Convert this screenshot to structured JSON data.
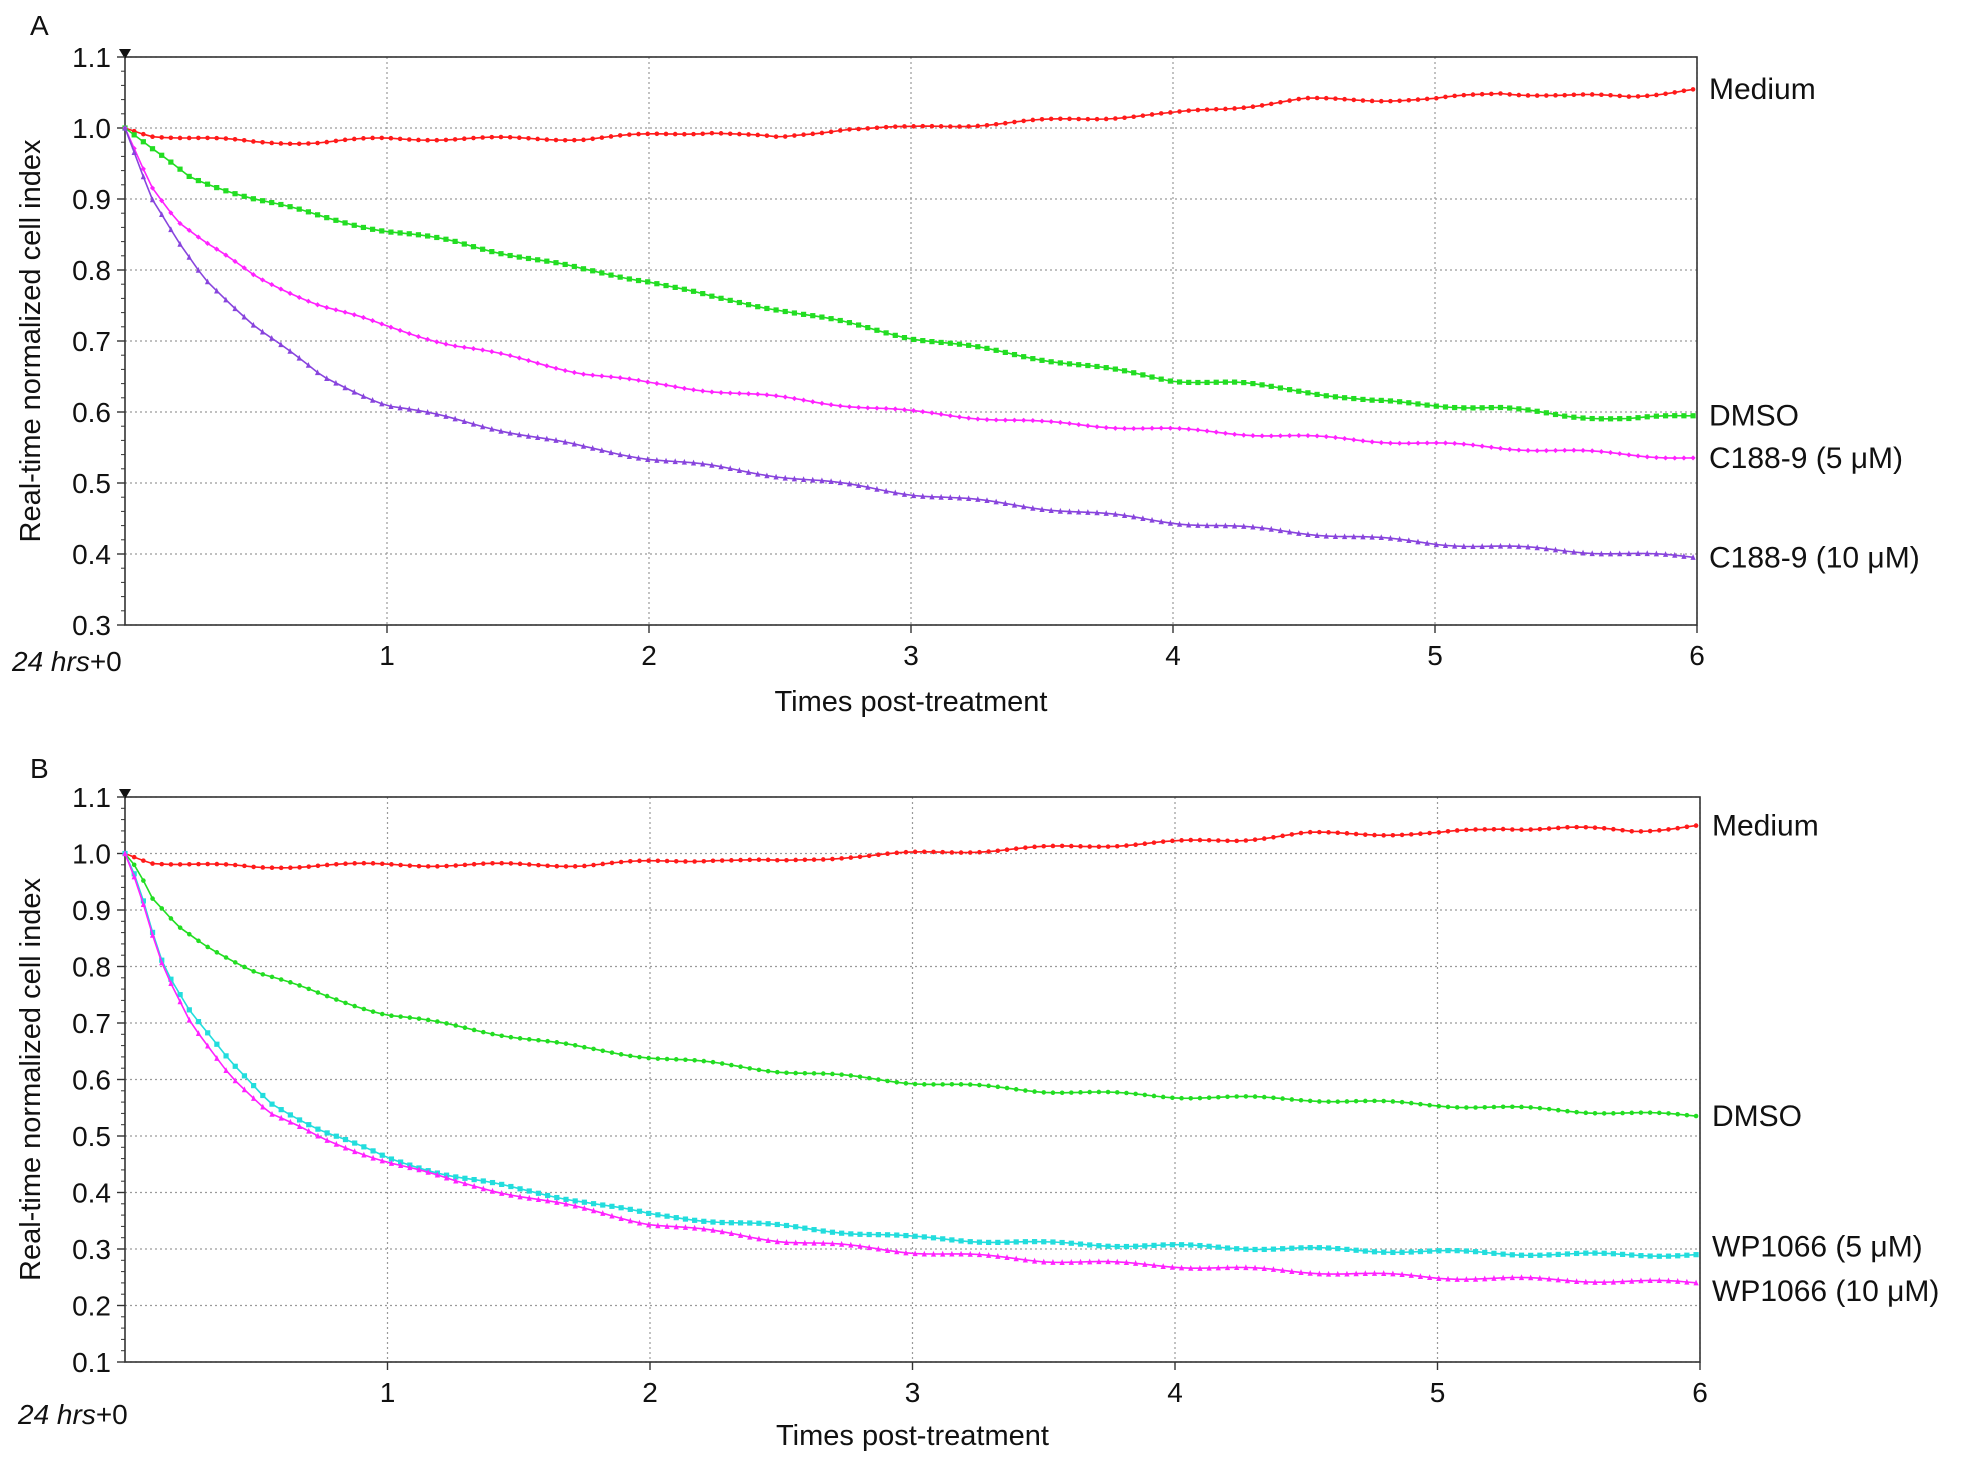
{
  "chart_data": [
    {
      "panel": "A",
      "type": "line",
      "xlabel": "Times post-treatment",
      "ylabel": "Real-time normalized cell index",
      "xlim": [
        0,
        6
      ],
      "ylim": [
        0.3,
        1.1
      ],
      "x_origin_label": {
        "italic": "24 hrs",
        "plain": "+0"
      },
      "xticks": [
        1,
        2,
        3,
        4,
        5,
        6
      ],
      "yticks": [
        0.3,
        0.4,
        0.5,
        0.6,
        0.7,
        0.8,
        0.9,
        1.0,
        1.1
      ],
      "ytick_labels": [
        "0.3",
        "0.4",
        "0.5",
        "0.6",
        "0.7",
        "0.8",
        "0.9",
        "1.0",
        "1.1"
      ],
      "xtick_labels": [
        "1",
        "2",
        "3",
        "4",
        "5",
        "6"
      ],
      "grid": true,
      "legend": "right, labels at line ends",
      "series": [
        {
          "name": "Medium",
          "color": "#ff1a1a",
          "marker": "circle",
          "x": [
            0,
            0.1,
            0.3,
            0.5,
            0.75,
            1.0,
            1.25,
            1.5,
            1.75,
            2.0,
            2.25,
            2.5,
            2.75,
            3.0,
            3.25,
            3.5,
            3.75,
            4.0,
            4.25,
            4.5,
            4.75,
            5.0,
            5.25,
            5.5,
            5.75,
            6.0
          ],
          "y": [
            1.0,
            0.99,
            0.985,
            0.98,
            0.98,
            0.985,
            0.985,
            0.985,
            0.985,
            0.99,
            0.995,
            0.985,
            1.0,
            1.0,
            1.005,
            1.01,
            1.015,
            1.02,
            1.03,
            1.04,
            1.04,
            1.04,
            1.05,
            1.045,
            1.045,
            1.055
          ]
        },
        {
          "name": "DMSO",
          "color": "#22dd22",
          "marker": "square",
          "x": [
            0,
            0.1,
            0.25,
            0.5,
            0.75,
            1.0,
            1.25,
            1.5,
            1.75,
            2.0,
            2.25,
            2.5,
            2.75,
            3.0,
            3.25,
            3.5,
            3.75,
            4.0,
            4.25,
            4.5,
            4.75,
            5.0,
            5.25,
            5.5,
            5.75,
            6.0
          ],
          "y": [
            1.0,
            0.97,
            0.93,
            0.9,
            0.875,
            0.855,
            0.84,
            0.82,
            0.8,
            0.785,
            0.76,
            0.745,
            0.725,
            0.705,
            0.69,
            0.675,
            0.66,
            0.645,
            0.64,
            0.63,
            0.615,
            0.61,
            0.605,
            0.595,
            0.59,
            0.595
          ]
        },
        {
          "name": "C188-9 (5 μM)",
          "color": "#ff22ff",
          "marker": "diamond",
          "x": [
            0,
            0.05,
            0.1,
            0.2,
            0.3,
            0.5,
            0.75,
            1.0,
            1.25,
            1.5,
            1.75,
            2.0,
            2.5,
            3.0,
            3.5,
            4.0,
            4.5,
            5.0,
            5.5,
            6.0
          ],
          "y": [
            1.0,
            0.96,
            0.92,
            0.87,
            0.84,
            0.79,
            0.75,
            0.72,
            0.695,
            0.675,
            0.655,
            0.64,
            0.62,
            0.6,
            0.585,
            0.575,
            0.565,
            0.555,
            0.545,
            0.535
          ]
        },
        {
          "name": "C188-9 (10 μM)",
          "color": "#8844dd",
          "marker": "triangle",
          "x": [
            0,
            0.05,
            0.1,
            0.2,
            0.3,
            0.5,
            0.75,
            1.0,
            1.25,
            1.5,
            1.75,
            2.0,
            2.5,
            3.0,
            3.5,
            4.0,
            4.5,
            5.0,
            5.5,
            6.0
          ],
          "y": [
            1.0,
            0.95,
            0.9,
            0.84,
            0.79,
            0.72,
            0.65,
            0.61,
            0.59,
            0.57,
            0.55,
            0.535,
            0.51,
            0.485,
            0.465,
            0.445,
            0.43,
            0.415,
            0.405,
            0.395
          ]
        }
      ]
    },
    {
      "panel": "B",
      "type": "line",
      "xlabel": "Times post-treatment",
      "ylabel": "Real-time normalized cell index",
      "xlim": [
        0,
        6
      ],
      "ylim": [
        0.1,
        1.1
      ],
      "x_origin_label": {
        "italic": "24 hrs",
        "plain": "+0"
      },
      "xticks": [
        1,
        2,
        3,
        4,
        5,
        6
      ],
      "yticks": [
        0.1,
        0.2,
        0.3,
        0.4,
        0.5,
        0.6,
        0.7,
        0.8,
        0.9,
        1.0,
        1.1
      ],
      "ytick_labels": [
        "0.1",
        "0.2",
        "0.3",
        "0.4",
        "0.5",
        "0.6",
        "0.7",
        "0.8",
        "0.9",
        "1.0",
        "1.1"
      ],
      "xtick_labels": [
        "1",
        "2",
        "3",
        "4",
        "5",
        "6"
      ],
      "grid": true,
      "legend": "right, labels at line ends",
      "series": [
        {
          "name": "Medium",
          "color": "#ff1a1a",
          "marker": "circle",
          "x": [
            0,
            0.1,
            0.3,
            0.5,
            0.75,
            1.0,
            1.25,
            1.5,
            1.75,
            2.0,
            2.25,
            2.5,
            2.75,
            3.0,
            3.25,
            3.5,
            3.75,
            4.0,
            4.25,
            4.5,
            4.75,
            5.0,
            5.25,
            5.5,
            5.75,
            6.0
          ],
          "y": [
            1.0,
            0.985,
            0.98,
            0.975,
            0.98,
            0.98,
            0.98,
            0.98,
            0.98,
            0.985,
            0.99,
            0.985,
            0.995,
            1.0,
            1.005,
            1.01,
            1.015,
            1.02,
            1.025,
            1.035,
            1.035,
            1.035,
            1.045,
            1.045,
            1.04,
            1.05
          ]
        },
        {
          "name": "DMSO",
          "color": "#22dd22",
          "marker": "circle",
          "x": [
            0,
            0.05,
            0.1,
            0.2,
            0.3,
            0.5,
            0.75,
            1.0,
            1.25,
            1.5,
            1.75,
            2.0,
            2.5,
            3.0,
            3.5,
            4.0,
            4.5,
            5.0,
            5.5,
            6.0
          ],
          "y": [
            1.0,
            0.97,
            0.92,
            0.87,
            0.84,
            0.79,
            0.75,
            0.715,
            0.695,
            0.675,
            0.655,
            0.64,
            0.615,
            0.595,
            0.58,
            0.57,
            0.565,
            0.555,
            0.545,
            0.535
          ]
        },
        {
          "name": "WP1066 (5 μM)",
          "color": "#22dddd",
          "marker": "square",
          "x": [
            0,
            0.05,
            0.1,
            0.15,
            0.25,
            0.4,
            0.55,
            0.75,
            1.0,
            1.25,
            1.5,
            1.75,
            2.0,
            2.5,
            3.0,
            3.5,
            4.0,
            4.5,
            5.0,
            5.5,
            6.0
          ],
          "y": [
            1.0,
            0.95,
            0.87,
            0.8,
            0.72,
            0.63,
            0.56,
            0.51,
            0.46,
            0.43,
            0.405,
            0.385,
            0.36,
            0.34,
            0.32,
            0.31,
            0.305,
            0.3,
            0.295,
            0.29,
            0.29
          ]
        },
        {
          "name": "WP1066 (10 μM)",
          "color": "#ff22ff",
          "marker": "triangle",
          "x": [
            0,
            0.05,
            0.1,
            0.15,
            0.25,
            0.4,
            0.55,
            0.75,
            1.0,
            1.25,
            1.5,
            1.75,
            2.0,
            2.5,
            3.0,
            3.5,
            4.0,
            4.5,
            5.0,
            5.5,
            6.0
          ],
          "y": [
            1.0,
            0.94,
            0.86,
            0.79,
            0.7,
            0.61,
            0.54,
            0.495,
            0.455,
            0.42,
            0.395,
            0.37,
            0.345,
            0.315,
            0.295,
            0.28,
            0.27,
            0.26,
            0.25,
            0.245,
            0.24
          ]
        }
      ]
    }
  ]
}
